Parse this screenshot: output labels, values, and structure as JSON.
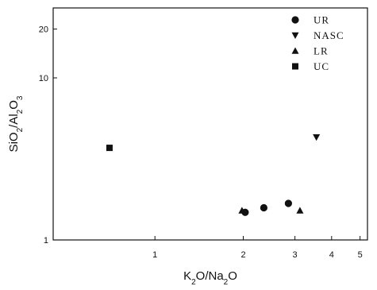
{
  "chart_data": {
    "type": "scatter",
    "xscale": "log",
    "yscale": "log",
    "xlim": [
      0.45,
      5.3
    ],
    "ylim": [
      1,
      27
    ],
    "xticks": [
      1,
      2,
      3,
      4,
      5
    ],
    "xtick_labels": [
      "1",
      "2",
      "3",
      "4",
      "5"
    ],
    "yticks": [
      1,
      10,
      20
    ],
    "ytick_labels": [
      "1",
      "10",
      "20"
    ],
    "xlabel_parts": [
      "K",
      "2",
      "O/Na",
      "2",
      "O"
    ],
    "ylabel_parts": [
      "SiO",
      "2",
      "/Al",
      "2",
      "O",
      "3"
    ],
    "grid": false,
    "legend_position": "top-right",
    "series": [
      {
        "name": "UR",
        "marker": "circle",
        "points": [
          [
            2.03,
            1.48
          ],
          [
            2.35,
            1.58
          ],
          [
            2.85,
            1.68
          ]
        ]
      },
      {
        "name": "NASC",
        "marker": "triangle-down",
        "points": [
          [
            3.55,
            4.3
          ]
        ]
      },
      {
        "name": "LR",
        "marker": "triangle-up",
        "points": [
          [
            1.98,
            1.52
          ],
          [
            3.12,
            1.52
          ]
        ]
      },
      {
        "name": "UC",
        "marker": "square",
        "points": [
          [
            0.7,
            3.7
          ]
        ]
      }
    ]
  }
}
